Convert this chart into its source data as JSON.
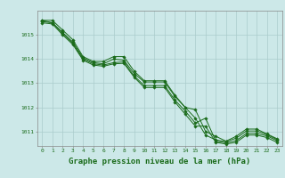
{
  "xlabel": "Graphe pression niveau de la mer (hPa)",
  "bg_color": "#cce8e8",
  "grid_color": "#aacccc",
  "line_color": "#1a6b1a",
  "marker_color": "#1a6b1a",
  "x": [
    0,
    1,
    2,
    3,
    4,
    5,
    6,
    7,
    8,
    9,
    10,
    11,
    12,
    13,
    14,
    15,
    16,
    17,
    18,
    19,
    20,
    21,
    22,
    23
  ],
  "lines": [
    [
      1015.6,
      1015.6,
      1015.2,
      1014.8,
      1014.1,
      1013.9,
      1013.9,
      1014.1,
      1014.1,
      1013.5,
      1013.1,
      1013.1,
      1013.1,
      1012.5,
      1012.0,
      1011.9,
      1011.0,
      1010.8,
      1010.6,
      1010.8,
      1011.1,
      1011.1,
      1010.9,
      1010.7
    ],
    [
      1015.6,
      1015.5,
      1015.1,
      1014.7,
      1014.05,
      1013.85,
      1013.8,
      1014.0,
      1013.95,
      1013.4,
      1013.05,
      1013.05,
      1013.05,
      1012.45,
      1012.0,
      1011.55,
      1010.85,
      1010.65,
      1010.58,
      1010.72,
      1011.02,
      1011.02,
      1010.87,
      1010.67
    ],
    [
      1015.55,
      1015.5,
      1015.05,
      1014.65,
      1014.0,
      1013.8,
      1013.75,
      1013.85,
      1013.88,
      1013.3,
      1012.9,
      1012.9,
      1012.9,
      1012.3,
      1011.85,
      1011.35,
      1011.55,
      1010.6,
      1010.53,
      1010.62,
      1010.92,
      1010.92,
      1010.82,
      1010.62
    ],
    [
      1015.5,
      1015.45,
      1015.0,
      1014.6,
      1013.95,
      1013.75,
      1013.7,
      1013.8,
      1013.82,
      1013.25,
      1012.82,
      1012.82,
      1012.82,
      1012.22,
      1011.72,
      1011.22,
      1011.22,
      1010.55,
      1010.48,
      1010.55,
      1010.85,
      1010.85,
      1010.75,
      1010.55
    ]
  ],
  "ylim": [
    1010.4,
    1016.0
  ],
  "yticks": [
    1011,
    1012,
    1013,
    1014,
    1015
  ],
  "xticks": [
    0,
    1,
    2,
    3,
    4,
    5,
    6,
    7,
    8,
    9,
    10,
    11,
    12,
    13,
    14,
    15,
    16,
    17,
    18,
    19,
    20,
    21,
    22,
    23
  ],
  "tick_fontsize": 4.5,
  "label_fontsize": 6.5
}
